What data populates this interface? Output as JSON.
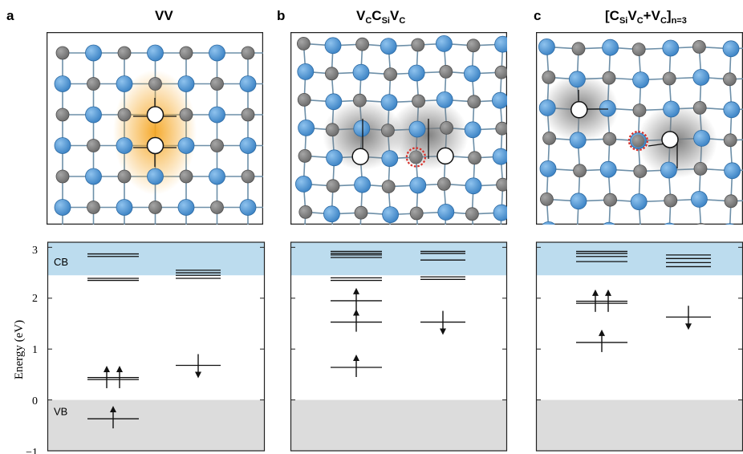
{
  "panels": [
    {
      "letter": "a",
      "title": "VV",
      "subscripts": []
    },
    {
      "letter": "b",
      "title_parts": [
        "V",
        "C",
        "C",
        "Si",
        "V",
        "C"
      ]
    },
    {
      "letter": "c",
      "title_parts": [
        "[C",
        "Si",
        "V",
        "C",
        "+V",
        "C",
        "]",
        "n=3"
      ]
    }
  ],
  "axis": {
    "ylabel": "Energy (eV)",
    "ticks": [
      "3",
      "2",
      "1",
      "0",
      "−1"
    ],
    "cb_label": "CB",
    "vb_label": "VB"
  },
  "colors": {
    "si_atom": "#3b82c4",
    "c_atom": "#6b6b6b",
    "cb_band": "#bcdcee",
    "vb_band": "#dcdcdc",
    "glow_orange": "#f5a623",
    "carbon_antisite_ring": "#d9312b"
  },
  "chart_data": {
    "type": "energy-level-diagram",
    "ylim": [
      -1,
      3.1
    ],
    "cb_min": 2.45,
    "vb_max": 0,
    "panels": [
      {
        "name": "VV",
        "spin_up_levels": [
          2.87,
          2.82,
          2.39,
          2.35,
          0.44,
          0.4,
          -0.37
        ],
        "spin_up_arrows": [
          0.42,
          0.42,
          -0.37
        ],
        "spin_down_levels": [
          2.55,
          2.5,
          2.45,
          2.39,
          0.68
        ],
        "spin_down_arrows": [
          0.68
        ]
      },
      {
        "name": "VCCSiVC",
        "spin_up_levels": [
          2.92,
          2.88,
          2.85,
          2.8,
          2.4,
          2.35,
          1.95,
          1.53,
          0.64
        ],
        "spin_up_arrows": [
          1.95,
          1.53,
          0.64
        ],
        "spin_down_levels": [
          2.92,
          2.88,
          2.75,
          2.42,
          2.37,
          1.53
        ],
        "spin_down_arrows": [
          1.53
        ]
      },
      {
        "name": "[CSiVC+VC]n=3",
        "spin_up_levels": [
          2.92,
          2.88,
          2.82,
          2.72,
          1.94,
          1.9,
          1.13
        ],
        "spin_up_arrows": [
          1.92,
          1.92,
          1.13
        ],
        "spin_down_levels": [
          2.85,
          2.78,
          2.7,
          2.62,
          1.63
        ],
        "spin_down_arrows": [
          1.63
        ]
      }
    ]
  }
}
